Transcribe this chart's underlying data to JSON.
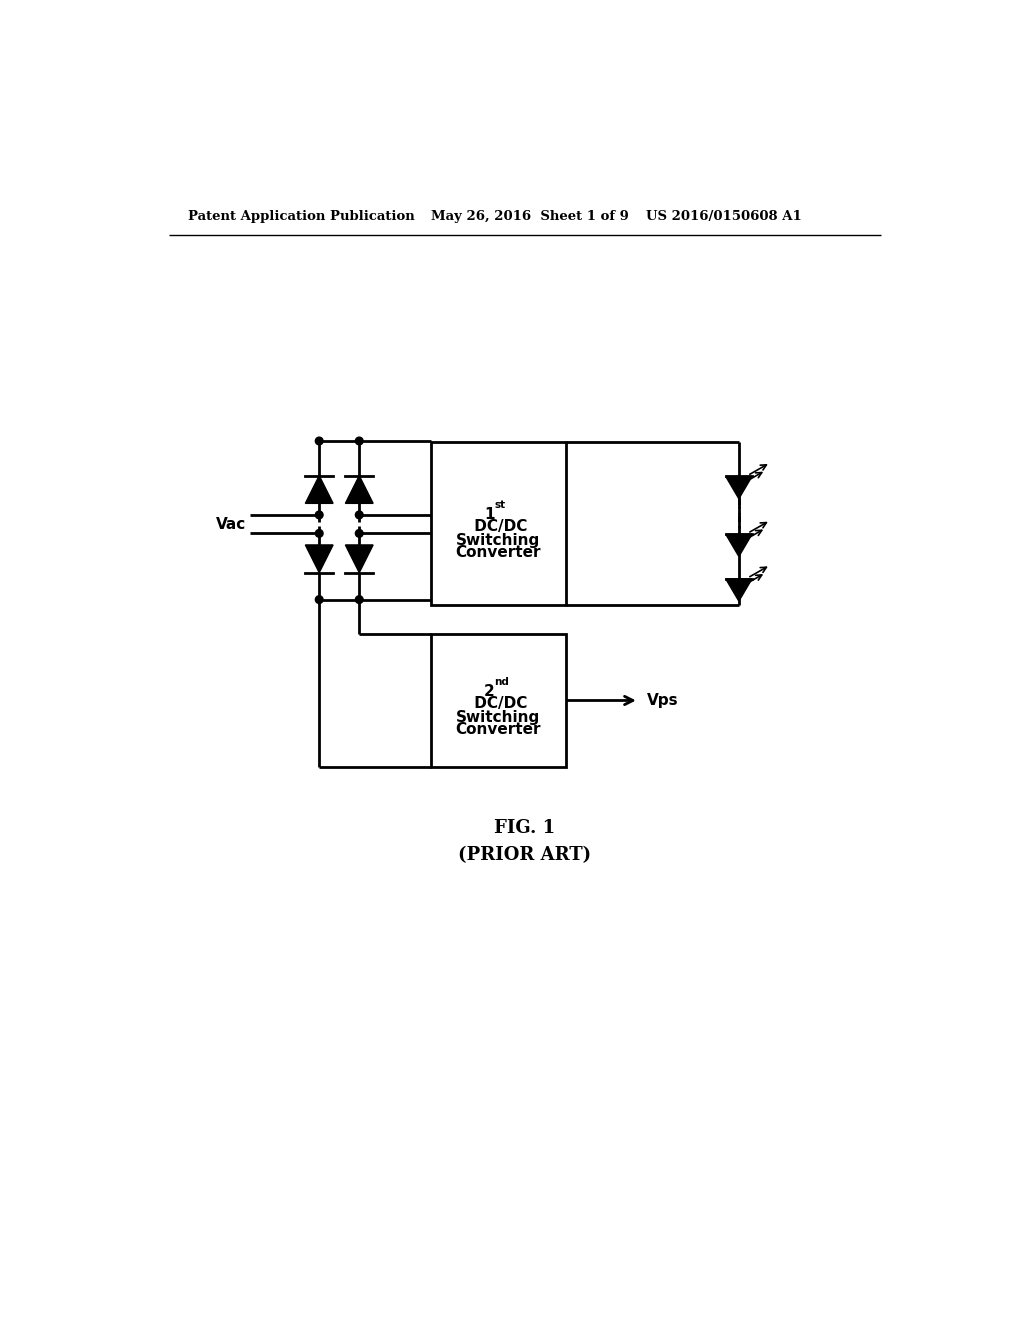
{
  "header_left": "Patent Application Publication",
  "header_mid": "May 26, 2016  Sheet 1 of 9",
  "header_right": "US 2016/0150608 A1",
  "box1_label": " DC/DC\nSwitching\nConverter",
  "box2_label": " DC/DC\nSwitching\nConverter",
  "vac_label": "Vac",
  "vps_label": "Vps",
  "fig_label": "FIG. 1",
  "prior_art_label": "(PRIOR ART)",
  "bg_color": "#ffffff",
  "line_color": "#000000"
}
